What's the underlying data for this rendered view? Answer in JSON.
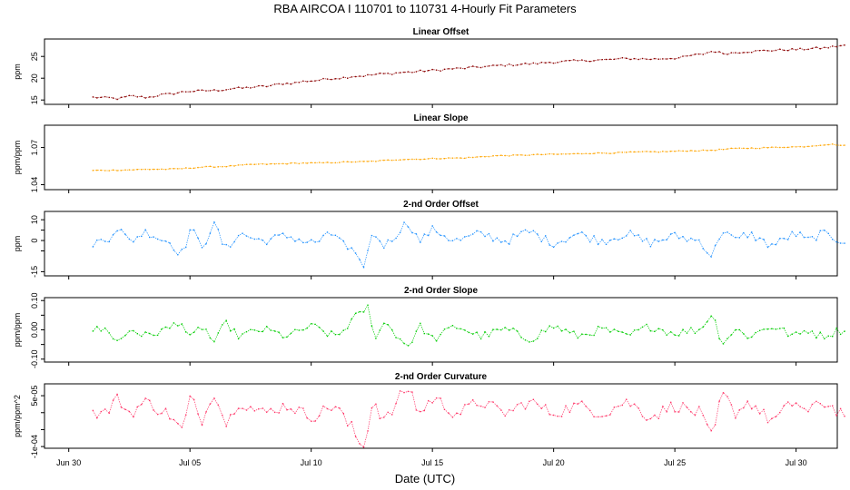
{
  "chart_data": {
    "type": "line",
    "title": "RBA   AIRCOA I   110701 to 110731   4-Hourly Fit Parameters",
    "xlabel": "Date (UTC)",
    "x_domain_days": [
      -1,
      31.7
    ],
    "x_ticks": [
      {
        "day": 0,
        "label": "Jun 30"
      },
      {
        "day": 5,
        "label": "Jul 05"
      },
      {
        "day": 10,
        "label": "Jul 10"
      },
      {
        "day": 15,
        "label": "Jul 15"
      },
      {
        "day": 20,
        "label": "Jul 20"
      },
      {
        "day": 25,
        "label": "Jul 25"
      },
      {
        "day": 30,
        "label": "Jul 30"
      }
    ],
    "series_x_range_days": [
      1.0,
      32.0
    ],
    "panels": [
      {
        "title": "Linear Offset",
        "ylabel": "ppm",
        "color": "#8b0000",
        "ylim": [
          14,
          29
        ],
        "yticks": [
          15,
          20,
          25
        ],
        "ytick_labels": [
          "15",
          "20",
          "25"
        ],
        "anchors": [
          [
            1.0,
            15.6
          ],
          [
            1.6,
            15.5
          ],
          [
            2.0,
            15.3
          ],
          [
            2.6,
            15.9
          ],
          [
            3.2,
            15.6
          ],
          [
            4.0,
            16.3
          ],
          [
            5.0,
            17.0
          ],
          [
            6.0,
            17.2
          ],
          [
            7.0,
            17.7
          ],
          [
            8.0,
            18.1
          ],
          [
            9.0,
            18.8
          ],
          [
            10.0,
            19.4
          ],
          [
            11.0,
            20.0
          ],
          [
            12.0,
            20.5
          ],
          [
            13.0,
            21.0
          ],
          [
            14.0,
            21.4
          ],
          [
            15.0,
            21.8
          ],
          [
            16.0,
            22.2
          ],
          [
            17.0,
            22.6
          ],
          [
            18.0,
            23.0
          ],
          [
            19.0,
            23.3
          ],
          [
            20.0,
            23.7
          ],
          [
            21.0,
            24.0
          ],
          [
            22.0,
            24.2
          ],
          [
            23.0,
            24.5
          ],
          [
            24.0,
            24.4
          ],
          [
            25.0,
            24.6
          ],
          [
            26.0,
            25.4
          ],
          [
            26.6,
            26.2
          ],
          [
            27.0,
            25.7
          ],
          [
            28.0,
            26.1
          ],
          [
            29.0,
            26.4
          ],
          [
            30.0,
            26.6
          ],
          [
            31.0,
            26.9
          ],
          [
            32.0,
            27.5
          ]
        ],
        "noise": 0.25
      },
      {
        "title": "Linear Slope",
        "ylabel": "ppm/ppm",
        "color": "#ffa500",
        "ylim": [
          1.036,
          1.088
        ],
        "yticks": [
          1.04,
          1.07
        ],
        "ytick_labels": [
          "1.04",
          "1.07"
        ],
        "anchors": [
          [
            1.0,
            1.0515
          ],
          [
            4.0,
            1.0525
          ],
          [
            6.0,
            1.0545
          ],
          [
            8.0,
            1.0565
          ],
          [
            10.0,
            1.0575
          ],
          [
            12.0,
            1.0585
          ],
          [
            14.0,
            1.0605
          ],
          [
            16.0,
            1.0615
          ],
          [
            18.0,
            1.0635
          ],
          [
            20.0,
            1.0645
          ],
          [
            22.0,
            1.0655
          ],
          [
            24.0,
            1.0665
          ],
          [
            26.0,
            1.0675
          ],
          [
            28.0,
            1.0695
          ],
          [
            30.0,
            1.0705
          ],
          [
            31.5,
            1.0725
          ],
          [
            32.0,
            1.0715
          ]
        ],
        "noise": 0.0004
      },
      {
        "title": "2-nd Order Offset",
        "ylabel": "ppm",
        "color": "#1e90ff",
        "ylim": [
          -17,
          14
        ],
        "yticks": [
          -15,
          -5,
          0,
          5,
          10
        ],
        "ytick_labels": [
          "-15",
          "",
          "0",
          "",
          "10"
        ],
        "anchors": [
          [
            1.0,
            -1
          ],
          [
            1.5,
            0
          ],
          [
            2.0,
            6
          ],
          [
            2.5,
            0
          ],
          [
            3.2,
            4
          ],
          [
            4.0,
            0
          ],
          [
            4.7,
            -6
          ],
          [
            5.0,
            5
          ],
          [
            5.5,
            -2
          ],
          [
            6.0,
            7
          ],
          [
            6.5,
            -4
          ],
          [
            7.0,
            3
          ],
          [
            8.0,
            0
          ],
          [
            9.0,
            2
          ],
          [
            10.0,
            -1
          ],
          [
            11.0,
            3
          ],
          [
            11.6,
            -5
          ],
          [
            12.1,
            -12
          ],
          [
            12.6,
            3
          ],
          [
            13.0,
            -2
          ],
          [
            14.0,
            8
          ],
          [
            14.5,
            0
          ],
          [
            15.0,
            5
          ],
          [
            16.0,
            0
          ],
          [
            17.0,
            3
          ],
          [
            18.0,
            0
          ],
          [
            19.0,
            4
          ],
          [
            20.0,
            -1
          ],
          [
            21.0,
            3
          ],
          [
            22.0,
            0
          ],
          [
            23.0,
            3
          ],
          [
            24.0,
            -1
          ],
          [
            25.0,
            2
          ],
          [
            26.0,
            0
          ],
          [
            26.5,
            -7
          ],
          [
            27.0,
            5
          ],
          [
            27.5,
            0
          ],
          [
            28.0,
            3
          ],
          [
            29.0,
            -2
          ],
          [
            30.0,
            3
          ],
          [
            30.5,
            0
          ],
          [
            31.0,
            3
          ],
          [
            32.0,
            0
          ]
        ],
        "noise": 2.2
      },
      {
        "title": "2-nd Order Slope",
        "ylabel": "ppm/ppm",
        "color": "#00cd00",
        "ylim": [
          -0.11,
          0.11
        ],
        "yticks": [
          -0.1,
          -0.05,
          0.0,
          0.05,
          0.1
        ],
        "ytick_labels": [
          "-0.10",
          "",
          "0.00",
          "",
          "0.10"
        ],
        "anchors": [
          [
            1.0,
            0.0
          ],
          [
            1.6,
            0.0
          ],
          [
            2.0,
            -0.04
          ],
          [
            2.6,
            0.0
          ],
          [
            3.2,
            -0.02
          ],
          [
            4.0,
            0.0
          ],
          [
            4.6,
            0.03
          ],
          [
            5.0,
            -0.03
          ],
          [
            5.5,
            0.01
          ],
          [
            6.0,
            -0.04
          ],
          [
            6.5,
            0.02
          ],
          [
            7.0,
            -0.02
          ],
          [
            8.0,
            0.0
          ],
          [
            9.0,
            -0.02
          ],
          [
            10.0,
            0.01
          ],
          [
            11.0,
            -0.02
          ],
          [
            12.0,
            0.05
          ],
          [
            12.3,
            0.08
          ],
          [
            12.6,
            -0.02
          ],
          [
            13.0,
            0.02
          ],
          [
            14.0,
            -0.05
          ],
          [
            14.5,
            0.01
          ],
          [
            15.0,
            -0.03
          ],
          [
            16.0,
            0.01
          ],
          [
            17.0,
            -0.02
          ],
          [
            18.0,
            0.0
          ],
          [
            19.0,
            -0.03
          ],
          [
            20.0,
            0.01
          ],
          [
            21.0,
            -0.02
          ],
          [
            22.0,
            0.0
          ],
          [
            23.0,
            -0.02
          ],
          [
            24.0,
            0.01
          ],
          [
            25.0,
            -0.01
          ],
          [
            26.0,
            0.0
          ],
          [
            26.5,
            0.05
          ],
          [
            27.0,
            -0.04
          ],
          [
            27.5,
            0.0
          ],
          [
            28.0,
            -0.02
          ],
          [
            29.0,
            0.01
          ],
          [
            30.0,
            -0.02
          ],
          [
            30.5,
            0.0
          ],
          [
            31.0,
            -0.02
          ],
          [
            32.0,
            0.0
          ]
        ],
        "noise": 0.014
      },
      {
        "title": "2-nd Order Curvature",
        "ylabel": "ppm/ppm^2",
        "color": "#ff3366",
        "ylim": [
          -0.000105,
          8.5e-05
        ],
        "yticks": [
          -0.0001,
          -5e-05,
          0.0,
          5e-05
        ],
        "ytick_labels": [
          "-1e-04",
          "",
          "",
          "5e-05"
        ],
        "anchors": [
          [
            1.0,
            0.0
          ],
          [
            1.5,
            0.0
          ],
          [
            2.0,
            4e-05
          ],
          [
            2.5,
            0.0
          ],
          [
            3.2,
            3e-05
          ],
          [
            4.0,
            0.0
          ],
          [
            4.7,
            -5e-05
          ],
          [
            5.0,
            4e-05
          ],
          [
            5.5,
            -2e-05
          ],
          [
            6.0,
            6e-05
          ],
          [
            6.5,
            -3e-05
          ],
          [
            7.0,
            3e-05
          ],
          [
            8.0,
            0.0
          ],
          [
            9.0,
            2e-05
          ],
          [
            10.0,
            -1e-05
          ],
          [
            11.0,
            2e-05
          ],
          [
            11.6,
            -4e-05
          ],
          [
            12.1,
            -0.0001
          ],
          [
            12.6,
            3e-05
          ],
          [
            13.0,
            -2e-05
          ],
          [
            14.0,
            7e-05
          ],
          [
            14.5,
            0.0
          ],
          [
            15.0,
            4e-05
          ],
          [
            16.0,
            0.0
          ],
          [
            17.0,
            3e-05
          ],
          [
            18.0,
            0.0
          ],
          [
            19.0,
            3e-05
          ],
          [
            20.0,
            0.0
          ],
          [
            21.0,
            2e-05
          ],
          [
            22.0,
            0.0
          ],
          [
            23.0,
            3e-05
          ],
          [
            24.0,
            -1e-05
          ],
          [
            25.0,
            2e-05
          ],
          [
            26.0,
            0.0
          ],
          [
            26.5,
            -7e-05
          ],
          [
            27.0,
            5e-05
          ],
          [
            27.5,
            0.0
          ],
          [
            28.0,
            3e-05
          ],
          [
            29.0,
            -2e-05
          ],
          [
            30.0,
            3e-05
          ],
          [
            30.5,
            0.0
          ],
          [
            31.0,
            3e-05
          ],
          [
            32.0,
            0.0
          ]
        ],
        "noise": 1.8e-05
      }
    ]
  }
}
